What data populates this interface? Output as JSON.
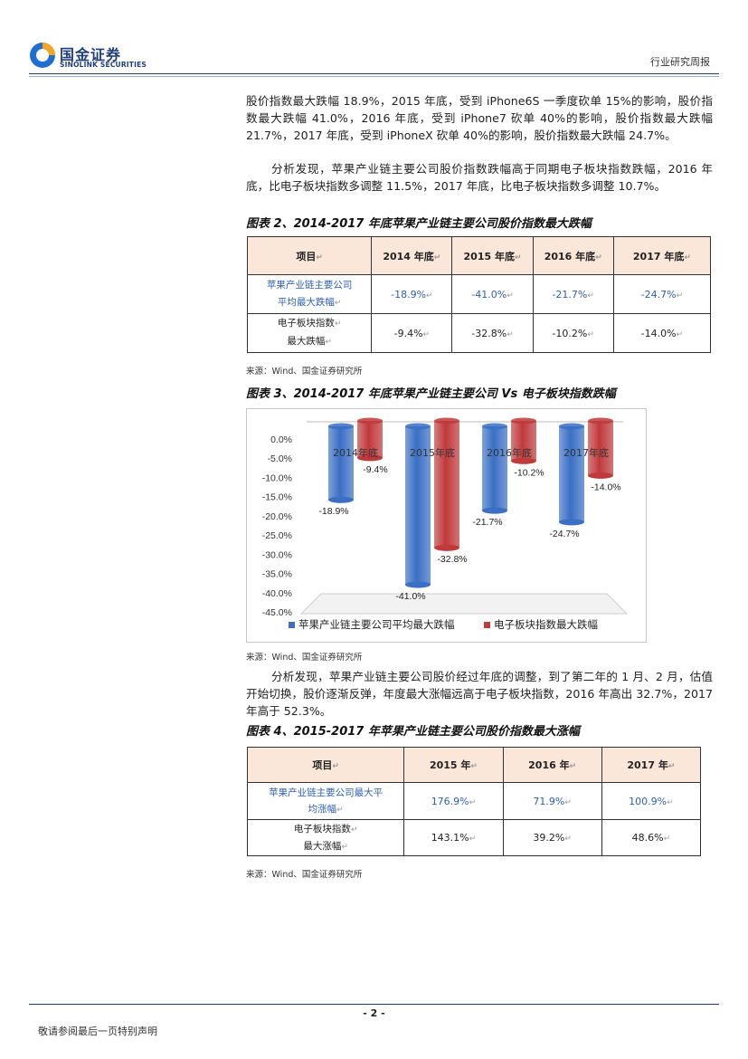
{
  "header": {
    "logo_cn": "国金证券",
    "logo_en": "SINOLINK SECURITIES",
    "report_type": "行业研究周报"
  },
  "paragraphs": {
    "p1": "股价指数最大跌幅 18.9%，2015 年底，受到 iPhone6S 一季度砍单 15%的影响，股价指数最大跌幅 41.0%，2016 年底，受到 iPhone7 砍单 40%的影响，股价指数最大跌幅 21.7%，2017 年底，受到 iPhoneX 砍单 40%的影响，股价指数最大跌幅 24.7%。",
    "p2": "分析发现，苹果产业链主要公司股价指数跌幅高于同期电子板块指数跌幅，2016 年底，比电子板块指数多调整 11.5%，2017 年底，比电子板块指数多调整 10.7%。",
    "p3": "分析发现，苹果产业链主要公司股价经过年底的调整，到了第二年的 1 月、2 月，估值开始切换，股价逐渐反弹，年度最大涨幅远高于电子板块指数，2016 年高出 32.7%，2017 年高于 52.3%。"
  },
  "figure2": {
    "title": "图表 2、2014-2017 年底苹果产业链主要公司股价指数最大跌幅",
    "headers": [
      "项目",
      "2014 年底",
      "2015 年底",
      "2016 年底",
      "2017 年底"
    ],
    "rows": [
      {
        "label_l1": "苹果产业链主要公司",
        "label_l2": "平均最大跌幅",
        "values": [
          "-18.9%",
          "-41.0%",
          "-21.7%",
          "-24.7%"
        ]
      },
      {
        "label_l1": "电子板块指数",
        "label_l2": "最大跌幅",
        "values": [
          "-9.4%",
          "-32.8%",
          "-10.2%",
          "-14.0%"
        ]
      }
    ],
    "source": "来源：Wind、国金证券研究所"
  },
  "figure3": {
    "title": "图表 3、2014-2017 年底苹果产业链主要公司 Vs 电子板块指数跌幅",
    "source": "来源：Wind、国金证券研究所"
  },
  "chart_data": {
    "type": "bar",
    "categories": [
      "2014年底",
      "2015年底",
      "2016年底",
      "2017年底"
    ],
    "series": [
      {
        "name": "苹果产业链主要公司平均最大跌幅",
        "color": "#3a6fc4",
        "values": [
          -18.9,
          -41.0,
          -21.7,
          -24.7
        ],
        "labels": [
          "-18.9%",
          "-41.0%",
          "-21.7%",
          "-24.7%"
        ]
      },
      {
        "name": "电子板块指数最大跌幅",
        "color": "#c0393b",
        "values": [
          -9.4,
          -32.8,
          -10.2,
          -14.0
        ],
        "labels": [
          "-9.4%",
          "-32.8%",
          "-10.2%",
          "-14.0%"
        ]
      }
    ],
    "yticks": [
      "0.0%",
      "-5.0%",
      "-10.0%",
      "-15.0%",
      "-20.0%",
      "-25.0%",
      "-30.0%",
      "-35.0%",
      "-40.0%",
      "-45.0%"
    ],
    "ylim": [
      -45,
      0
    ],
    "legend_position": "bottom",
    "grid": false
  },
  "figure4": {
    "title": "图表 4、2015-2017 年苹果产业链主要公司股价指数最大涨幅",
    "headers": [
      "项目",
      "2015 年",
      "2016 年",
      "2017 年"
    ],
    "rows": [
      {
        "label_l1": "苹果产业链主要公司最大平",
        "label_l2": "均涨幅",
        "values": [
          "176.9%",
          "71.9%",
          "100.9%"
        ]
      },
      {
        "label_l1": "电子板块指数",
        "label_l2": "最大涨幅",
        "values": [
          "143.1%",
          "39.2%",
          "48.6%"
        ]
      }
    ],
    "source": "来源：Wind、国金证券研究所"
  },
  "footer": {
    "page": "- 2 -",
    "note": "敬请参阅最后一页特别声明"
  }
}
